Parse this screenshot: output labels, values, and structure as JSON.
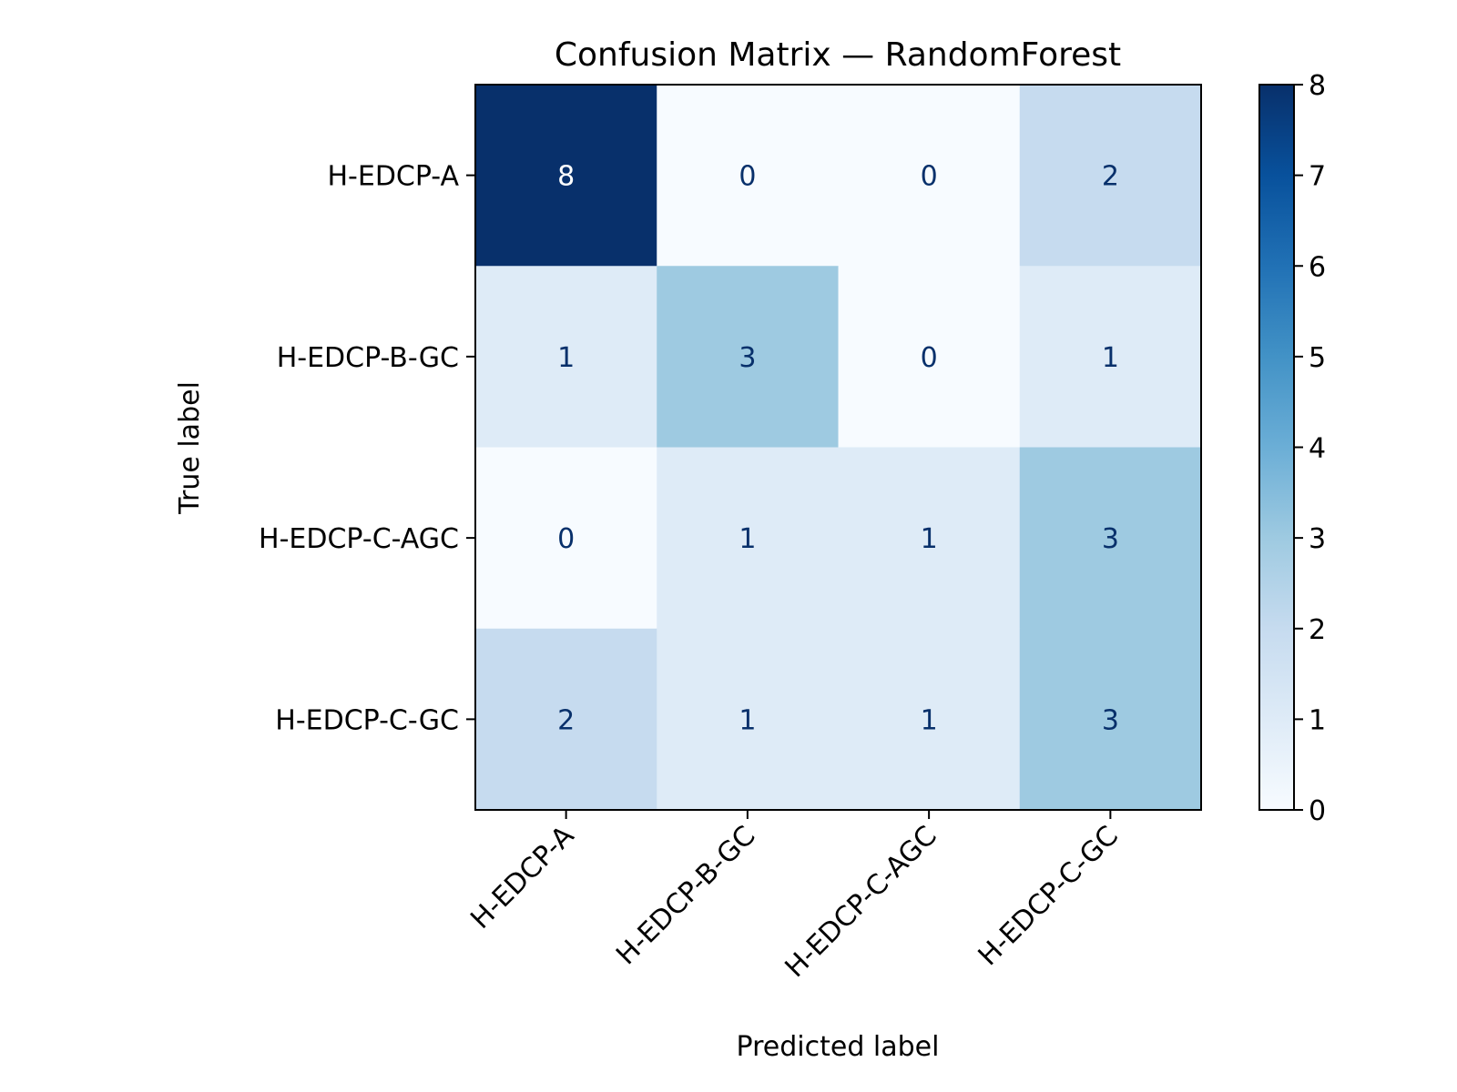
{
  "chart_data": {
    "type": "heatmap",
    "title": "Confusion Matrix — RandomForest",
    "xlabel": "Predicted label",
    "ylabel": "True label",
    "row_labels": [
      "H-EDCP-A",
      "H-EDCP-B-GC",
      "H-EDCP-C-AGC",
      "H-EDCP-C-GC"
    ],
    "col_labels": [
      "H-EDCP-A",
      "H-EDCP-B-GC",
      "H-EDCP-C-AGC",
      "H-EDCP-C-GC"
    ],
    "values": [
      [
        8,
        0,
        0,
        2
      ],
      [
        1,
        3,
        0,
        1
      ],
      [
        0,
        1,
        1,
        3
      ],
      [
        2,
        1,
        1,
        3
      ]
    ],
    "colormap": "Blues",
    "colorbar": {
      "range": [
        0,
        8
      ],
      "ticks": [
        "0",
        "1",
        "2",
        "3",
        "4",
        "5",
        "6",
        "7",
        "8"
      ]
    },
    "cell_text_colors": {
      "dark_bg": "#ffffff",
      "light_bg": "#08306b"
    }
  }
}
